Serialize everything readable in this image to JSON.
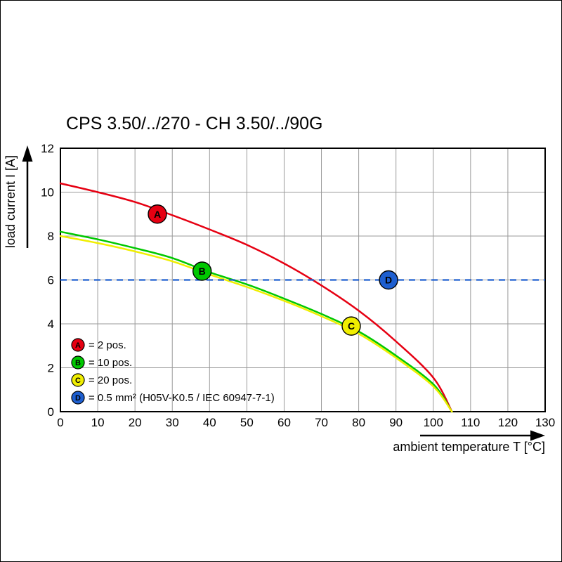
{
  "window": {
    "background": "#ffffff",
    "border_color": "#000000"
  },
  "chart_data": {
    "type": "line",
    "title": "CPS 3.50/../270 - CH 3.50/../90G",
    "xlabel": "ambient temperature T [°C]",
    "ylabel": "load current I [A]",
    "xlim": [
      0,
      130
    ],
    "ylim": [
      0,
      12
    ],
    "x_ticks": [
      0,
      10,
      20,
      30,
      40,
      50,
      60,
      70,
      80,
      90,
      100,
      110,
      120,
      130
    ],
    "y_ticks": [
      0,
      2,
      4,
      6,
      8,
      10,
      12
    ],
    "grid": true,
    "legend_position": "bottom-left-inside",
    "colors": {
      "grid": "#9a9a9a",
      "axis": "#000000",
      "marker_letter": "#ffffff"
    },
    "series": [
      {
        "name": "A",
        "label": "2 pos.",
        "color": "#e60012",
        "kind": "curve",
        "style": "solid",
        "x": [
          0,
          10,
          20,
          30,
          40,
          50,
          60,
          70,
          80,
          90,
          100,
          105
        ],
        "y": [
          10.4,
          10.0,
          9.55,
          8.95,
          8.3,
          7.6,
          6.75,
          5.75,
          4.6,
          3.2,
          1.55,
          0
        ]
      },
      {
        "name": "B",
        "label": "10 pos.",
        "color": "#00c800",
        "kind": "curve",
        "style": "solid",
        "x": [
          0,
          10,
          20,
          30,
          40,
          50,
          60,
          70,
          80,
          90,
          100,
          105
        ],
        "y": [
          8.2,
          7.85,
          7.45,
          7.0,
          6.35,
          5.8,
          5.15,
          4.45,
          3.65,
          2.55,
          1.25,
          0
        ]
      },
      {
        "name": "C",
        "label": "20 pos.",
        "color": "#f0ee00",
        "kind": "curve",
        "style": "solid",
        "x": [
          0,
          10,
          20,
          30,
          40,
          50,
          60,
          70,
          80,
          90,
          100,
          105
        ],
        "y": [
          8.0,
          7.68,
          7.3,
          6.85,
          6.25,
          5.68,
          5.05,
          4.35,
          3.55,
          2.45,
          1.15,
          0
        ]
      },
      {
        "name": "D",
        "label": "0.5 mm² (H05V-K0.5 / IEC 60947-7-1)",
        "color": "#1e5fd0",
        "kind": "hline",
        "value": 6,
        "style": "dashed"
      }
    ],
    "markers": [
      {
        "series": "A",
        "x": 26,
        "y": 9.0
      },
      {
        "series": "B",
        "x": 38,
        "y": 6.4
      },
      {
        "series": "C",
        "x": 78,
        "y": 3.9
      },
      {
        "series": "D",
        "x": 88,
        "y": 6.0
      }
    ],
    "legend": [
      {
        "key": "A",
        "color": "#e60012",
        "text": "= 2 pos."
      },
      {
        "key": "B",
        "color": "#00c800",
        "text": "= 10 pos."
      },
      {
        "key": "C",
        "color": "#f0ee00",
        "text": "= 20 pos."
      },
      {
        "key": "D",
        "color": "#1e5fd0",
        "text": "= 0.5 mm² (H05V-K0.5 / IEC 60947-7-1)"
      }
    ]
  }
}
